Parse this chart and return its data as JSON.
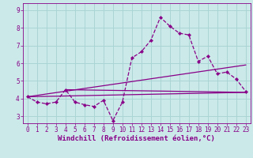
{
  "xlabel": "Windchill (Refroidissement éolien,°C)",
  "bg_color": "#cbe9e9",
  "grid_color": "#aad4d4",
  "line_color": "#880088",
  "marker_color": "#880088",
  "xlim": [
    -0.5,
    23.5
  ],
  "ylim": [
    2.6,
    9.4
  ],
  "yticks": [
    3,
    4,
    5,
    6,
    7,
    8,
    9
  ],
  "xticks": [
    0,
    1,
    2,
    3,
    4,
    5,
    6,
    7,
    8,
    9,
    10,
    11,
    12,
    13,
    14,
    15,
    16,
    17,
    18,
    19,
    20,
    21,
    22,
    23
  ],
  "main_x": [
    0,
    1,
    2,
    3,
    4,
    5,
    6,
    7,
    8,
    9,
    10,
    11,
    12,
    13,
    14,
    15,
    16,
    17,
    18,
    19,
    20,
    21,
    22,
    23
  ],
  "main_y": [
    4.1,
    3.8,
    3.7,
    3.8,
    4.5,
    3.8,
    3.65,
    3.55,
    3.9,
    2.75,
    3.8,
    6.3,
    6.65,
    7.3,
    8.6,
    8.1,
    7.7,
    7.6,
    6.1,
    6.4,
    5.4,
    5.5,
    5.1,
    4.4
  ],
  "line1_x": [
    0,
    23
  ],
  "line1_y": [
    4.1,
    4.35
  ],
  "line2_x": [
    0,
    23
  ],
  "line2_y": [
    4.1,
    5.9
  ],
  "line3_x": [
    4,
    23
  ],
  "line3_y": [
    4.5,
    4.35
  ],
  "tick_fontsize": 5.5,
  "xlabel_fontsize": 6.5,
  "bg_fig_color": "#cbe9e9"
}
